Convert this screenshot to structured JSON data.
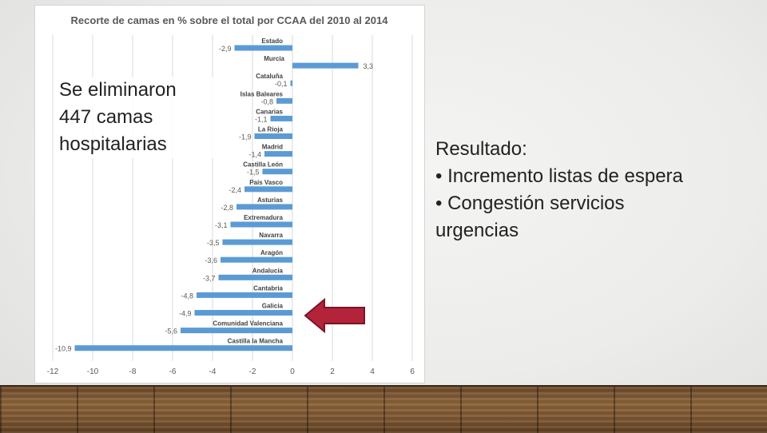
{
  "chart_data": {
    "type": "bar",
    "orientation": "horizontal",
    "title": "Recorte de camas en % sobre el total por CCAA del 2010 al 2014",
    "categories": [
      "Estado",
      "Murcia",
      "Cataluña",
      "Islas Baleares",
      "Canarias",
      "La Rioja",
      "Madrid",
      "Castilla León",
      "País Vasco",
      "Asturias",
      "Extremadura",
      "Navarra",
      "Aragón",
      "Andalucía",
      "Cantabria",
      "Galicia",
      "Comunidad Valenciana",
      "Castilla la Mancha"
    ],
    "values": [
      -2.9,
      3.3,
      -0.1,
      -0.8,
      -1.1,
      -1.9,
      -1.4,
      -1.5,
      -2.4,
      -2.8,
      -3.1,
      -3.5,
      -3.6,
      -3.7,
      -4.8,
      -4.9,
      -5.6,
      -10.9
    ],
    "value_labels": [
      "-2,9",
      "3,3",
      "-0,1",
      "-0,8",
      "-1,1",
      "-1,9",
      "-1,4",
      "-1,5",
      "-2,4",
      "-2,8",
      "-3,1",
      "-3,5",
      "-3,6",
      "-3,7",
      "-4,8",
      "-4,9",
      "-5,6",
      "-10,9"
    ],
    "xlim": [
      -12,
      6
    ],
    "xticks": [
      "-12",
      "-10",
      "-8",
      "-6",
      "-4",
      "-2",
      "0",
      "2",
      "4",
      "6"
    ],
    "xlabel": "",
    "ylabel": "",
    "grid": "vertical",
    "bar_color": "#5b9bd5"
  },
  "left_note": {
    "line1": "Se eliminaron",
    "line2": "447 camas",
    "line3": "hospitalarias"
  },
  "right_note": {
    "heading": "Resultado:",
    "item1": "• Incremento listas de espera",
    "item2": "• Congestión servicios",
    "item3": "urgencias"
  },
  "highlight": {
    "target_category": "Galicia",
    "arrow_color": "#b3233a"
  }
}
